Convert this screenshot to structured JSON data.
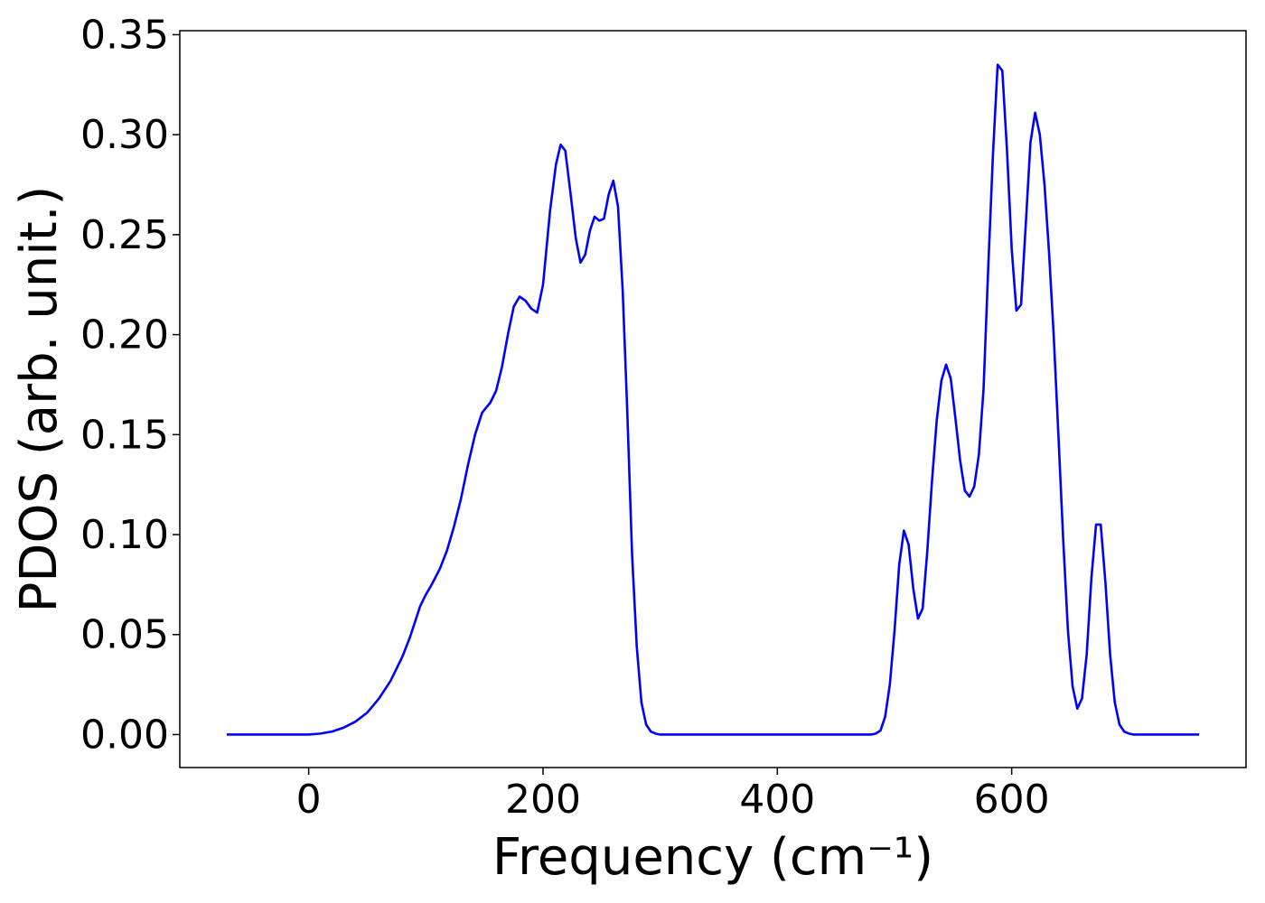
{
  "chart_data": {
    "type": "line",
    "title": "",
    "xlabel": "Frequency (cm⁻¹)",
    "ylabel": "PDOS (arb. unit.)",
    "xlim": [
      -110,
      800
    ],
    "ylim": [
      -0.0165,
      0.352
    ],
    "xticks": [
      0,
      200,
      400,
      600
    ],
    "xtick_labels": [
      "0",
      "200",
      "400",
      "600"
    ],
    "yticks": [
      0.0,
      0.05,
      0.1,
      0.15,
      0.2,
      0.25,
      0.3,
      0.35
    ],
    "ytick_labels": [
      "0.00",
      "0.05",
      "0.10",
      "0.15",
      "0.20",
      "0.25",
      "0.30",
      "0.35"
    ],
    "grid": false,
    "legend": "none",
    "series": [
      {
        "color": "#0000ff",
        "x": [
          -70,
          -40,
          -20,
          0,
          10,
          20,
          30,
          40,
          50,
          60,
          70,
          80,
          86,
          90,
          95,
          100,
          105,
          112,
          118,
          124,
          130,
          136,
          142,
          148,
          155,
          160,
          165,
          170,
          175,
          180,
          185,
          190,
          195,
          200,
          206,
          211,
          215,
          219,
          224,
          228,
          232,
          236,
          240,
          244,
          248,
          252,
          256,
          260,
          264,
          268,
          272,
          276,
          280,
          284,
          288,
          292,
          296,
          300,
          340,
          400,
          450,
          480,
          484,
          488,
          492,
          496,
          500,
          504,
          508,
          512,
          516,
          520,
          524,
          528,
          532,
          536,
          540,
          544,
          548,
          552,
          556,
          560,
          564,
          568,
          572,
          576,
          580,
          584,
          588,
          592,
          596,
          600,
          604,
          608,
          612,
          616,
          620,
          624,
          628,
          632,
          636,
          640,
          644,
          648,
          652,
          656,
          660,
          664,
          668,
          672,
          676,
          680,
          684,
          688,
          692,
          696,
          700,
          704,
          708,
          712,
          716,
          720,
          760
        ],
        "y": [
          0.0,
          0.0,
          0.0,
          0.0,
          0.0005,
          0.0015,
          0.0035,
          0.0065,
          0.011,
          0.018,
          0.027,
          0.039,
          0.048,
          0.055,
          0.064,
          0.07,
          0.075,
          0.083,
          0.092,
          0.104,
          0.118,
          0.135,
          0.15,
          0.161,
          0.166,
          0.172,
          0.184,
          0.2,
          0.214,
          0.219,
          0.217,
          0.213,
          0.211,
          0.225,
          0.262,
          0.285,
          0.295,
          0.292,
          0.268,
          0.248,
          0.236,
          0.24,
          0.252,
          0.259,
          0.257,
          0.258,
          0.27,
          0.277,
          0.264,
          0.222,
          0.16,
          0.09,
          0.044,
          0.016,
          0.005,
          0.0015,
          0.0005,
          0.0,
          0.0,
          0.0,
          0.0,
          0.0,
          0.0005,
          0.002,
          0.009,
          0.025,
          0.052,
          0.085,
          0.102,
          0.095,
          0.073,
          0.058,
          0.063,
          0.092,
          0.127,
          0.157,
          0.177,
          0.185,
          0.178,
          0.158,
          0.137,
          0.122,
          0.119,
          0.124,
          0.14,
          0.173,
          0.234,
          0.29,
          0.335,
          0.332,
          0.292,
          0.243,
          0.212,
          0.215,
          0.255,
          0.296,
          0.311,
          0.3,
          0.275,
          0.24,
          0.198,
          0.148,
          0.097,
          0.052,
          0.024,
          0.013,
          0.018,
          0.04,
          0.078,
          0.105,
          0.105,
          0.076,
          0.04,
          0.016,
          0.005,
          0.0015,
          0.0005,
          0.0,
          0.0,
          0.0,
          0.0,
          0.0,
          0.0
        ]
      }
    ]
  }
}
